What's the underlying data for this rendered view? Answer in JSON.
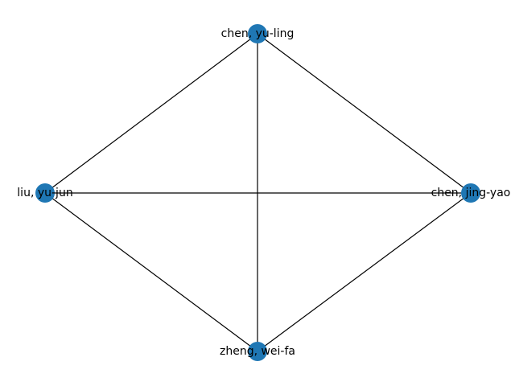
{
  "graph": {
    "type": "network",
    "node_color": "#1f77b4",
    "edge_color": "#000000",
    "nodes": [
      {
        "id": "n1",
        "label": "chen, yu-ling"
      },
      {
        "id": "n2",
        "label": "liu, yu-jun"
      },
      {
        "id": "n3",
        "label": "chen, jing-yao"
      },
      {
        "id": "n4",
        "label": "zheng, wei-fa"
      }
    ],
    "edges": [
      {
        "source": "n1",
        "target": "n2"
      },
      {
        "source": "n1",
        "target": "n3"
      },
      {
        "source": "n1",
        "target": "n4"
      },
      {
        "source": "n2",
        "target": "n3"
      },
      {
        "source": "n2",
        "target": "n4"
      },
      {
        "source": "n3",
        "target": "n4"
      }
    ]
  }
}
